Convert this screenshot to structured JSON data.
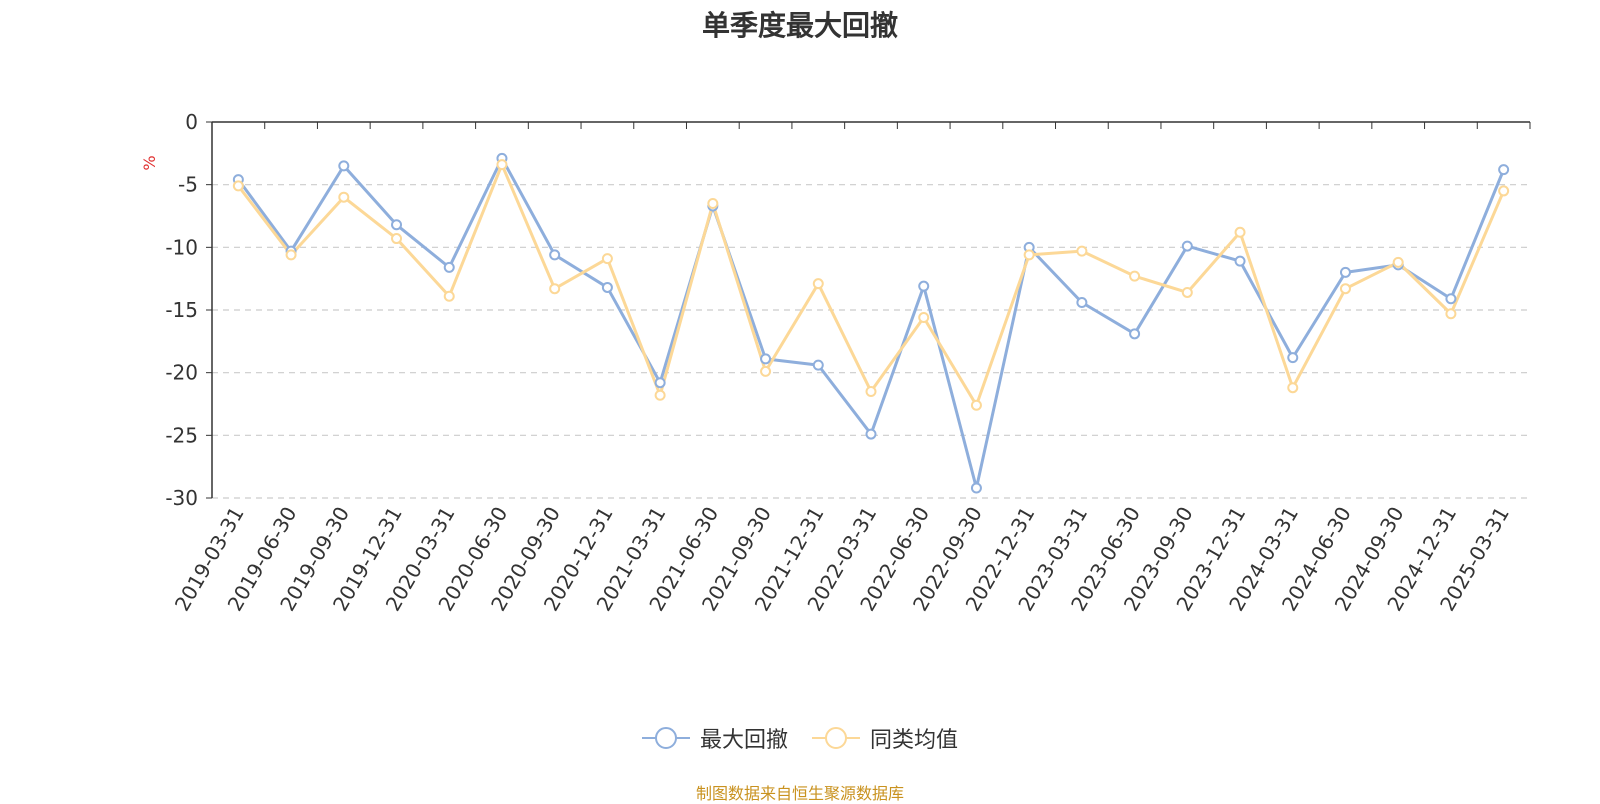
{
  "source_note": "制图数据来自恒生聚源数据库",
  "chart_data": {
    "type": "line",
    "title": "单季度最大回撤",
    "ylabel": "%",
    "ylim": [
      -30,
      0
    ],
    "yticks": [
      0,
      -5,
      -10,
      -15,
      -20,
      -25,
      -30
    ],
    "grid": true,
    "legend_position": "bottom-center",
    "categories": [
      "2019-03-31",
      "2019-06-30",
      "2019-09-30",
      "2019-12-31",
      "2020-03-31",
      "2020-06-30",
      "2020-09-30",
      "2020-12-31",
      "2021-03-31",
      "2021-06-30",
      "2021-09-30",
      "2021-12-31",
      "2022-03-31",
      "2022-06-30",
      "2022-09-30",
      "2022-12-31",
      "2023-03-31",
      "2023-06-30",
      "2023-09-30",
      "2023-12-31",
      "2024-03-31",
      "2024-06-30",
      "2024-09-30",
      "2024-12-31",
      "2025-03-31"
    ],
    "series": [
      {
        "name": "最大回撤",
        "color": "#8eaedc",
        "values": [
          -4.6,
          -10.3,
          -3.5,
          -8.2,
          -11.6,
          -2.9,
          -10.6,
          -13.2,
          -20.8,
          -6.7,
          -18.9,
          -19.4,
          -24.9,
          -13.1,
          -29.2,
          -10.0,
          -14.4,
          -16.9,
          -9.9,
          -11.1,
          -18.8,
          -12.0,
          -11.4,
          -14.1,
          -3.8
        ]
      },
      {
        "name": "同类均值",
        "color": "#fcd897",
        "values": [
          -5.1,
          -10.6,
          -6.0,
          -9.3,
          -13.9,
          -3.4,
          -13.3,
          -10.9,
          -21.8,
          -6.5,
          -19.9,
          -12.9,
          -21.5,
          -15.6,
          -22.6,
          -10.6,
          -10.3,
          -12.3,
          -13.6,
          -8.8,
          -21.2,
          -13.3,
          -11.2,
          -15.3,
          -5.5
        ]
      }
    ]
  }
}
